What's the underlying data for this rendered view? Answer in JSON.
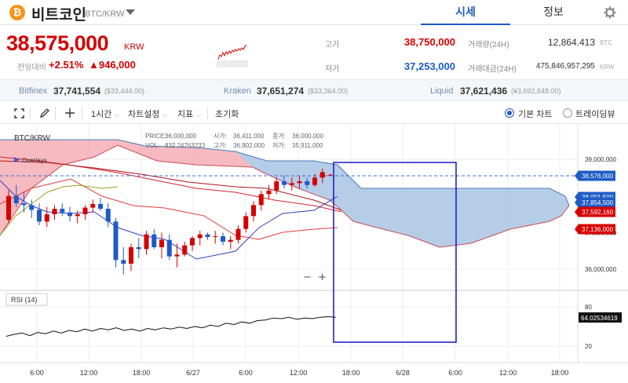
{
  "header": {
    "coin_symbol_glyph": "₿",
    "coin_name": "비트코인",
    "pair": "BTC/KRW",
    "tabs": [
      "시세",
      "정보"
    ]
  },
  "price": {
    "current": "38,575,000",
    "unit": "KRW",
    "change_label": "전일대비",
    "change_pct": "+2.51%",
    "change_amt": "▲946,000"
  },
  "stats": {
    "high_label": "고가",
    "high": "38,750,000",
    "low_label": "저가",
    "low": "37,253,000",
    "volume_label": "거래량(24H)",
    "volume": "12,864.413",
    "volume_unit": "BTC",
    "value_label": "거래대금(24H)",
    "value": "475,846,957,295",
    "value_unit": "KRW"
  },
  "exchanges": [
    {
      "name": "Bitfinex",
      "price": "37,741,554",
      "diff": "($33,444.00)"
    },
    {
      "name": "Kraken",
      "price": "37,651,274",
      "diff": "($33,364.00)"
    },
    {
      "name": "Liquid",
      "price": "37,621,436",
      "diff": "(¥3,692,648.00)"
    }
  ],
  "toolbar": {
    "interval": "1시간",
    "chart_settings": "차트설정",
    "indicators": "지표",
    "reset": "초기화",
    "basic_chart": "기본 차트",
    "tradingview": "트레이딩뷰"
  },
  "colors": {
    "up": "#d60000",
    "down": "#1e5bc6",
    "accent": "#1e5bc6"
  },
  "chart_data": {
    "type": "candlestick",
    "title": "BTC/KRW",
    "info": {
      "price_label": "PRICE:",
      "price": "36,000,000",
      "vol_label": "VOL:",
      "vol": "832.24763233",
      "open_label": "시가:",
      "open": "36,411,000",
      "close_label": "종가:",
      "close": "36,000,000",
      "high_label": "고가:",
      "high": "36,902,000",
      "low_label": "저가:",
      "low": "35,911,000"
    },
    "indicator_label": "Overlays",
    "y_ticks": [
      "39,000,000",
      "37,000,000",
      "36,000,000"
    ],
    "y_tick_values": [
      39000000,
      37000000,
      36000000
    ],
    "x_ticks": [
      "6:00",
      "12:00",
      "18:00",
      "6/27",
      "6:00",
      "12:00",
      "18:00",
      "6/28",
      "6:00",
      "12:00",
      "18:00"
    ],
    "price_tags": [
      {
        "text": "38,576,000",
        "value": 38576000,
        "color": "#1e5bc6"
      },
      {
        "text": "38,001,500",
        "value": 38001500,
        "color": "#1e5bc6"
      },
      {
        "text": "37,854,500",
        "value": 37854500,
        "color": "#1e5bc6"
      },
      {
        "text": "37,592,160",
        "value": 37592160,
        "color": "#d60000"
      },
      {
        "text": "37,136,000",
        "value": 37136000,
        "color": "#d60000"
      }
    ],
    "candles": [
      {
        "o": 37350000,
        "h": 38150000,
        "l": 37250000,
        "c": 38000000
      },
      {
        "o": 38000000,
        "h": 38300000,
        "l": 37700000,
        "c": 37800000
      },
      {
        "o": 37800000,
        "h": 38100000,
        "l": 37550000,
        "c": 37750000
      },
      {
        "o": 37750000,
        "h": 37900000,
        "l": 37400000,
        "c": 37620000
      },
      {
        "o": 37620000,
        "h": 37800000,
        "l": 37200000,
        "c": 37300000
      },
      {
        "o": 37300000,
        "h": 37700000,
        "l": 37150000,
        "c": 37500000
      },
      {
        "o": 37500000,
        "h": 37750000,
        "l": 37350000,
        "c": 37650000
      },
      {
        "o": 37650000,
        "h": 37800000,
        "l": 37450000,
        "c": 37550000
      },
      {
        "o": 37550000,
        "h": 37700000,
        "l": 37300000,
        "c": 37450000
      },
      {
        "o": 37450000,
        "h": 37600000,
        "l": 37250000,
        "c": 37500000
      },
      {
        "o": 37500000,
        "h": 37750000,
        "l": 37350000,
        "c": 37680000
      },
      {
        "o": 37680000,
        "h": 37900000,
        "l": 37550000,
        "c": 37780000
      },
      {
        "o": 37780000,
        "h": 37950000,
        "l": 37600000,
        "c": 37650000
      },
      {
        "o": 37650000,
        "h": 37800000,
        "l": 37150000,
        "c": 37300000
      },
      {
        "o": 37300000,
        "h": 37400000,
        "l": 36050000,
        "c": 36250000
      },
      {
        "o": 36250000,
        "h": 36600000,
        "l": 35850000,
        "c": 36150000
      },
      {
        "o": 36150000,
        "h": 36700000,
        "l": 35950000,
        "c": 36600000
      },
      {
        "o": 36600000,
        "h": 36850000,
        "l": 36300000,
        "c": 36550000
      },
      {
        "o": 36550000,
        "h": 37050000,
        "l": 36400000,
        "c": 36950000
      },
      {
        "o": 36950000,
        "h": 37100000,
        "l": 36550000,
        "c": 36600000
      },
      {
        "o": 36600000,
        "h": 37000000,
        "l": 36300000,
        "c": 36800000
      },
      {
        "o": 36800000,
        "h": 36950000,
        "l": 36250000,
        "c": 36350000
      },
      {
        "o": 36350000,
        "h": 36700000,
        "l": 36050000,
        "c": 36400000
      },
      {
        "o": 36400000,
        "h": 36750000,
        "l": 36350000,
        "c": 36650000
      },
      {
        "o": 36650000,
        "h": 36900000,
        "l": 36500000,
        "c": 36850000
      },
      {
        "o": 36850000,
        "h": 37050000,
        "l": 36650000,
        "c": 36950000
      },
      {
        "o": 36950000,
        "h": 37000000,
        "l": 36800000,
        "c": 36880000
      },
      {
        "o": 36880000,
        "h": 37050000,
        "l": 36700000,
        "c": 36900000
      },
      {
        "o": 36900000,
        "h": 37000000,
        "l": 36650000,
        "c": 36750000
      },
      {
        "o": 36750000,
        "h": 36900000,
        "l": 36550000,
        "c": 36800000
      },
      {
        "o": 36800000,
        "h": 37200000,
        "l": 36700000,
        "c": 37100000
      },
      {
        "o": 37100000,
        "h": 37550000,
        "l": 37000000,
        "c": 37450000
      },
      {
        "o": 37450000,
        "h": 37850000,
        "l": 37300000,
        "c": 37750000
      },
      {
        "o": 37750000,
        "h": 38150000,
        "l": 37600000,
        "c": 38050000
      },
      {
        "o": 38050000,
        "h": 38300000,
        "l": 37900000,
        "c": 38150000
      },
      {
        "o": 38150000,
        "h": 38500000,
        "l": 38050000,
        "c": 38400000
      },
      {
        "o": 38400000,
        "h": 38550000,
        "l": 38200000,
        "c": 38300000
      },
      {
        "o": 38300000,
        "h": 38500000,
        "l": 38150000,
        "c": 38350000
      },
      {
        "o": 38350000,
        "h": 38550000,
        "l": 38200000,
        "c": 38400000
      },
      {
        "o": 38400000,
        "h": 38500000,
        "l": 38200000,
        "c": 38300000
      },
      {
        "o": 38300000,
        "h": 38600000,
        "l": 38250000,
        "c": 38500000
      },
      {
        "o": 38500000,
        "h": 38750000,
        "l": 38350000,
        "c": 38650000
      },
      {
        "o": 38560000,
        "h": 38600000,
        "l": 38540000,
        "c": 38576000
      }
    ],
    "rsi": {
      "label": "RSI (14)",
      "ticks": [
        "80",
        "20"
      ],
      "tick_values": [
        80,
        20
      ],
      "current": "64.02534619",
      "values": [
        35,
        38,
        40,
        36,
        41,
        39,
        43,
        40,
        44,
        42,
        46,
        43,
        47,
        45,
        48,
        44,
        46,
        43,
        47,
        45,
        48,
        46,
        49,
        47,
        50,
        48,
        52,
        50,
        55,
        53,
        57,
        55,
        59,
        60,
        63,
        62,
        64,
        61,
        63,
        62,
        64,
        65,
        64
      ]
    },
    "controls": {
      "zoom_out": "−",
      "zoom_in": "+"
    }
  }
}
